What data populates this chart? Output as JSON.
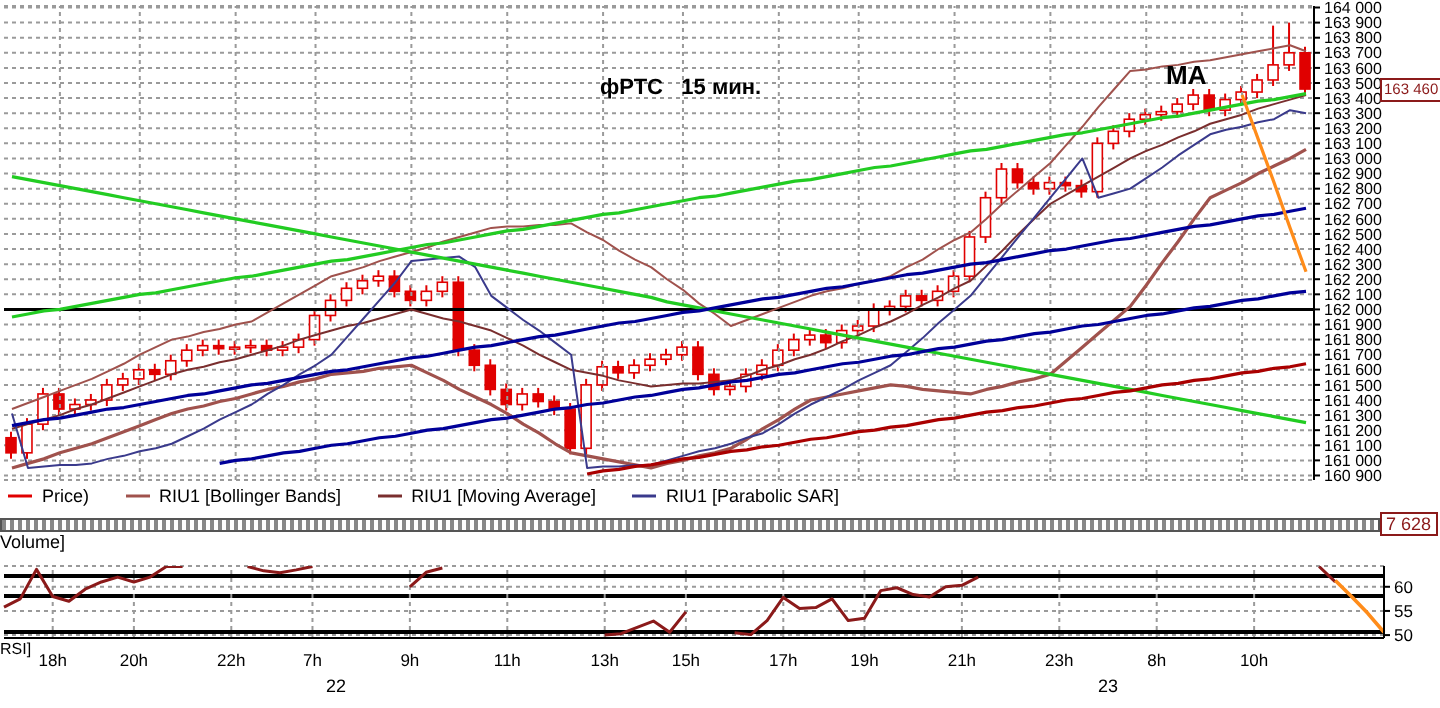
{
  "chart_data": [
    {
      "type": "candlestick",
      "title": "фРТС   15 мин.",
      "categories": [
        null,
        null,
        null,
        null,
        null,
        null,
        null,
        null,
        null,
        null,
        null,
        null,
        null,
        null,
        null,
        null,
        null,
        null,
        null,
        null,
        null,
        null,
        null,
        null,
        null,
        null,
        null,
        null,
        null,
        null,
        null,
        null,
        null,
        null,
        null,
        null,
        null,
        null,
        null,
        null,
        null,
        null,
        null,
        null,
        null,
        null,
        null,
        null,
        null,
        null,
        null,
        null,
        null,
        null,
        null,
        null,
        null,
        null,
        null,
        null,
        null,
        null,
        null,
        null,
        null,
        null,
        null,
        null,
        null,
        null,
        null,
        null,
        null,
        null,
        null,
        null,
        null,
        null,
        null,
        null,
        null,
        null
      ],
      "series": [
        {
          "name": "Price)",
          "type": "candlestick",
          "color": "#e00000",
          "ohlc": [
            [
              161150,
              161190,
              161010,
              161050
            ],
            [
              161050,
              161280,
              161010,
              161240
            ],
            [
              161240,
              161480,
              161200,
              161440
            ],
            [
              161440,
              161480,
              161300,
              161340
            ],
            [
              161340,
              161410,
              161300,
              161370
            ],
            [
              161370,
              161440,
              161330,
              161400
            ],
            [
              161400,
              161540,
              161360,
              161500
            ],
            [
              161500,
              161580,
              161460,
              161540
            ],
            [
              161540,
              161640,
              161500,
              161600
            ],
            [
              161600,
              161640,
              161530,
              161570
            ],
            [
              161570,
              161700,
              161530,
              161660
            ],
            [
              161660,
              161770,
              161620,
              161730
            ],
            [
              161730,
              161800,
              161690,
              161760
            ],
            [
              161760,
              161800,
              161700,
              161740
            ],
            [
              161740,
              161790,
              161700,
              161750
            ],
            [
              161750,
              161800,
              161710,
              161760
            ],
            [
              161760,
              161800,
              161690,
              161730
            ],
            [
              161730,
              161790,
              161690,
              161750
            ],
            [
              161750,
              161840,
              161710,
              161800
            ],
            [
              161800,
              162000,
              161760,
              161960
            ],
            [
              161960,
              162100,
              161920,
              162060
            ],
            [
              162060,
              162180,
              162020,
              162140
            ],
            [
              162140,
              162230,
              162100,
              162190
            ],
            [
              162190,
              162260,
              162150,
              162220
            ],
            [
              162220,
              162260,
              162080,
              162120
            ],
            [
              162120,
              162160,
              162020,
              162060
            ],
            [
              162060,
              162160,
              162020,
              162120
            ],
            [
              162120,
              162220,
              162080,
              162180
            ],
            [
              162180,
              162220,
              161690,
              161730
            ],
            [
              161730,
              161770,
              161590,
              161630
            ],
            [
              161630,
              161670,
              161430,
              161470
            ],
            [
              161470,
              161510,
              161330,
              161370
            ],
            [
              161370,
              161480,
              161330,
              161440
            ],
            [
              161440,
              161480,
              161350,
              161390
            ],
            [
              161390,
              161430,
              161300,
              161340
            ],
            [
              161340,
              161380,
              161040,
              161080
            ],
            [
              161080,
              161540,
              161040,
              161500
            ],
            [
              161500,
              161660,
              161460,
              161620
            ],
            [
              161620,
              161660,
              161540,
              161580
            ],
            [
              161580,
              161670,
              161540,
              161630
            ],
            [
              161630,
              161710,
              161590,
              161670
            ],
            [
              161670,
              161740,
              161630,
              161700
            ],
            [
              161700,
              161790,
              161660,
              161750
            ],
            [
              161750,
              161790,
              161530,
              161570
            ],
            [
              161570,
              161610,
              161430,
              161470
            ],
            [
              161470,
              161530,
              161430,
              161490
            ],
            [
              161490,
              161610,
              161450,
              161570
            ],
            [
              161570,
              161670,
              161530,
              161630
            ],
            [
              161630,
              161770,
              161590,
              161730
            ],
            [
              161730,
              161840,
              161690,
              161800
            ],
            [
              161800,
              161870,
              161760,
              161830
            ],
            [
              161830,
              161870,
              161740,
              161780
            ],
            [
              161780,
              161900,
              161740,
              161860
            ],
            [
              161860,
              161930,
              161820,
              161890
            ],
            [
              161890,
              162040,
              161850,
              162000
            ],
            [
              162000,
              162060,
              161960,
              162020
            ],
            [
              162020,
              162130,
              161980,
              162090
            ],
            [
              162090,
              162130,
              162020,
              162060
            ],
            [
              162060,
              162160,
              162020,
              162120
            ],
            [
              162120,
              162260,
              162080,
              162220
            ],
            [
              162220,
              162520,
              162180,
              162480
            ],
            [
              162480,
              162780,
              162440,
              162740
            ],
            [
              162740,
              162970,
              162700,
              162930
            ],
            [
              162930,
              162970,
              162800,
              162840
            ],
            [
              162840,
              162880,
              162760,
              162800
            ],
            [
              162800,
              162880,
              162760,
              162840
            ],
            [
              162840,
              162880,
              162780,
              162820
            ],
            [
              162820,
              162860,
              162740,
              162780
            ],
            [
              162780,
              163140,
              162740,
              163100
            ],
            [
              163100,
              163220,
              163060,
              163180
            ],
            [
              163180,
              163300,
              163140,
              163260
            ],
            [
              163260,
              163330,
              163220,
              163290
            ],
            [
              163290,
              163350,
              163250,
              163310
            ],
            [
              163310,
              163400,
              163270,
              163360
            ],
            [
              163360,
              163460,
              163320,
              163420
            ],
            [
              163420,
              163460,
              163280,
              163320
            ],
            [
              163320,
              163430,
              163280,
              163390
            ],
            [
              163390,
              163480,
              163350,
              163440
            ],
            [
              163440,
              163560,
              163400,
              163520
            ],
            [
              163520,
              163880,
              163480,
              163620
            ],
            [
              163620,
              163900,
              163580,
              163700
            ],
            [
              163700,
              163740,
              163420,
              163460
            ]
          ]
        },
        {
          "name": "RIU1 [Bollinger Bands]",
          "type": "line",
          "color": "#a0524d",
          "values": [
            161340,
            161380,
            161420,
            161460,
            161500,
            161540,
            161590,
            161640,
            161700,
            161750,
            161800,
            161820,
            161850,
            161870,
            161900,
            161920,
            161980,
            162040,
            162100,
            162160,
            162220,
            162250,
            162280,
            162320,
            162350,
            162380,
            162410,
            162450,
            162480,
            162510,
            162540,
            162550,
            162550,
            162560,
            162560,
            162570,
            162510,
            162460,
            162390,
            162330,
            162280,
            162200,
            162130,
            162040,
            161970,
            161890,
            161930,
            161970,
            162010,
            162050,
            162090,
            162120,
            162140,
            162170,
            162190,
            162220,
            162280,
            162330,
            162400,
            162460,
            162510,
            162600,
            162700,
            162790,
            162880,
            162970,
            163090,
            163210,
            163340,
            163460,
            163580,
            163590,
            163610,
            163620,
            163640,
            163650,
            163670,
            163690,
            163710,
            163730,
            163750,
            163710
          ]
        },
        {
          "type": "line",
          "color": "#a0524d",
          "values": [
            160950,
            160980,
            161010,
            161050,
            161080,
            161110,
            161150,
            161190,
            161230,
            161270,
            161310,
            161340,
            161360,
            161390,
            161410,
            161440,
            161470,
            161490,
            161520,
            161540,
            161570,
            161580,
            161590,
            161610,
            161620,
            161630,
            161580,
            161530,
            161470,
            161420,
            161370,
            161310,
            161240,
            161180,
            161110,
            161050,
            161030,
            161010,
            160990,
            160970,
            160950,
            160980,
            161000,
            161030,
            161050,
            161080,
            161140,
            161210,
            161270,
            161340,
            161400,
            161420,
            161440,
            161460,
            161480,
            161500,
            161490,
            161470,
            161460,
            161450,
            161440,
            161470,
            161490,
            161520,
            161540,
            161570,
            161660,
            161750,
            161840,
            161930,
            162020,
            162160,
            162310,
            162450,
            162600,
            162740,
            162790,
            162840,
            162900,
            162950,
            163000,
            163060
          ]
        },
        {
          "name": "RIU1 [Moving Average]",
          "type": "line",
          "color": "#7a2e2e",
          "values": [
            161210,
            161240,
            161270,
            161300,
            161340,
            161370,
            161410,
            161450,
            161490,
            161530,
            161570,
            161600,
            161620,
            161650,
            161670,
            161700,
            161730,
            161760,
            161800,
            161830,
            161860,
            161890,
            161910,
            161940,
            161970,
            162000,
            161970,
            161940,
            161920,
            161890,
            161860,
            161810,
            161760,
            161700,
            161650,
            161600,
            161580,
            161560,
            161530,
            161510,
            161490,
            161500,
            161510,
            161510,
            161520,
            161530,
            161560,
            161600,
            161630,
            161670,
            161700,
            161740,
            161790,
            161830,
            161880,
            161920,
            161970,
            162030,
            162080,
            162140,
            162190,
            162290,
            162390,
            162500,
            162600,
            162700,
            162760,
            162820,
            162880,
            162940,
            163000,
            163050,
            163090,
            163140,
            163180,
            163230,
            163260,
            163290,
            163330,
            163360,
            163390,
            163420
          ]
        },
        {
          "name": "RIU1 [Parabolic SAR]",
          "type": "line",
          "color": "#3a3a8c",
          "values": [
            161310,
            160950,
            160960,
            160970,
            160970,
            160980,
            161010,
            161030,
            161060,
            161080,
            161110,
            161160,
            161210,
            161270,
            161320,
            161370,
            161440,
            161500,
            161570,
            161630,
            161700,
            161820,
            161940,
            162060,
            162180,
            162320,
            162330,
            162340,
            162350,
            162280,
            162090,
            162010,
            161930,
            161860,
            161780,
            161700,
            160950,
            160960,
            160960,
            160970,
            160970,
            161000,
            161030,
            161060,
            161080,
            161110,
            161150,
            161180,
            161240,
            161310,
            161370,
            161420,
            161470,
            161530,
            161580,
            161630,
            161720,
            161810,
            161910,
            162000,
            162090,
            162220,
            162350,
            162480,
            162610,
            162740,
            162870,
            163000,
            162740,
            162770,
            162800,
            162870,
            162940,
            163020,
            163090,
            163160,
            163190,
            163210,
            163240,
            163260,
            163320,
            163300
          ]
        },
        {
          "type": "line",
          "color": "#22cc22",
          "values": [
            161950,
            161970,
            161990,
            162000,
            162020,
            162040,
            162060,
            162080,
            162100,
            162110,
            162130,
            162150,
            162170,
            162190,
            162210,
            162220,
            162240,
            162260,
            162280,
            162300,
            162320,
            162330,
            162350,
            162370,
            162390,
            162410,
            162430,
            162440,
            162460,
            162480,
            162500,
            162520,
            162530,
            162550,
            162570,
            162590,
            162610,
            162630,
            162640,
            162660,
            162680,
            162700,
            162720,
            162740,
            162750,
            162770,
            162790,
            162810,
            162830,
            162850,
            162860,
            162880,
            162900,
            162920,
            162940,
            162950,
            162970,
            162990,
            163010,
            163030,
            163050,
            163060,
            163080,
            163100,
            163120,
            163140,
            163160,
            163170,
            163190,
            163210,
            163230,
            163250,
            163270,
            163280,
            163300,
            163320,
            163340,
            163360,
            163380,
            163390,
            163410,
            163430
          ]
        },
        {
          "type": "line",
          "color": "#22cc22",
          "values": [
            162880,
            162860,
            162840,
            162820,
            162800,
            162780,
            162760,
            162740,
            162720,
            162700,
            162680,
            162660,
            162640,
            162620,
            162600,
            162580,
            162560,
            162540,
            162520,
            162500,
            162480,
            162460,
            162440,
            162420,
            162400,
            162380,
            162360,
            162340,
            162320,
            162300,
            162280,
            162260,
            162240,
            162220,
            162200,
            162180,
            162160,
            162140,
            162120,
            162100,
            162080,
            162050,
            162030,
            162010,
            161990,
            161970,
            161950,
            161930,
            161910,
            161890,
            161870,
            161850,
            161830,
            161810,
            161790,
            161770,
            161750,
            161730,
            161710,
            161690,
            161670,
            161650,
            161630,
            161610,
            161590,
            161570,
            161550,
            161530,
            161510,
            161490,
            161470,
            161450,
            161430,
            161410,
            161390,
            161370,
            161350,
            161330,
            161310,
            161290,
            161270,
            161250
          ]
        },
        {
          "type": "line",
          "color": "#000099",
          "values": [
            161230,
            161250,
            161270,
            161280,
            161300,
            161320,
            161340,
            161350,
            161370,
            161390,
            161410,
            161430,
            161440,
            161460,
            161480,
            161500,
            161510,
            161530,
            161550,
            161570,
            161590,
            161600,
            161620,
            161640,
            161660,
            161680,
            161690,
            161710,
            161730,
            161750,
            161760,
            161780,
            161800,
            161820,
            161830,
            161850,
            161870,
            161890,
            161910,
            161920,
            161940,
            161960,
            161980,
            161990,
            162010,
            162030,
            162050,
            162070,
            162080,
            162100,
            162120,
            162140,
            162150,
            162170,
            162190,
            162210,
            162230,
            162240,
            162260,
            162280,
            162300,
            162310,
            162330,
            162350,
            162370,
            162390,
            162400,
            162420,
            162440,
            162460,
            162470,
            162490,
            162510,
            162530,
            162550,
            162560,
            162580,
            162600,
            162620,
            162630,
            162650,
            162670
          ]
        },
        {
          "type": "line",
          "color": "#000099",
          "values": [
            null,
            null,
            null,
            null,
            null,
            null,
            null,
            null,
            null,
            null,
            null,
            null,
            null,
            160980,
            161000,
            161010,
            161030,
            161050,
            161060,
            161080,
            161100,
            161110,
            161130,
            161150,
            161160,
            161180,
            161200,
            161210,
            161230,
            161250,
            161270,
            161280,
            161300,
            161320,
            161340,
            161350,
            161370,
            161380,
            161400,
            161420,
            161430,
            161450,
            161470,
            161480,
            161500,
            161520,
            161530,
            161550,
            161570,
            161580,
            161600,
            161620,
            161640,
            161650,
            161670,
            161690,
            161700,
            161720,
            161740,
            161750,
            161770,
            161790,
            161800,
            161820,
            161840,
            161850,
            161870,
            161890,
            161900,
            161920,
            161940,
            161960,
            161970,
            161990,
            162010,
            162020,
            162040,
            162060,
            162070,
            162090,
            162110,
            162120
          ]
        },
        {
          "type": "line",
          "color": "#aa0000",
          "values": [
            null,
            null,
            null,
            null,
            null,
            null,
            null,
            null,
            null,
            null,
            null,
            null,
            null,
            null,
            null,
            null,
            null,
            null,
            null,
            null,
            null,
            null,
            null,
            null,
            null,
            null,
            null,
            null,
            null,
            null,
            null,
            null,
            null,
            null,
            null,
            null,
            160910,
            160930,
            160940,
            160960,
            160970,
            160990,
            161010,
            161020,
            161040,
            161060,
            161070,
            161090,
            161100,
            161120,
            161140,
            161150,
            161170,
            161190,
            161200,
            161220,
            161230,
            161250,
            161270,
            161280,
            161300,
            161320,
            161330,
            161350,
            161360,
            161380,
            161400,
            161410,
            161430,
            161450,
            161460,
            161480,
            161500,
            161510,
            161530,
            161540,
            161560,
            161580,
            161590,
            161610,
            161620,
            161640
          ]
        },
        {
          "type": "line",
          "color": "#ff8c1a",
          "values": [
            null,
            null,
            null,
            null,
            null,
            null,
            null,
            null,
            null,
            null,
            null,
            null,
            null,
            null,
            null,
            null,
            null,
            null,
            null,
            null,
            null,
            null,
            null,
            null,
            null,
            null,
            null,
            null,
            null,
            null,
            null,
            null,
            null,
            null,
            null,
            null,
            null,
            null,
            null,
            null,
            null,
            null,
            null,
            null,
            null,
            null,
            null,
            null,
            null,
            null,
            null,
            null,
            null,
            null,
            null,
            null,
            null,
            null,
            null,
            null,
            null,
            null,
            null,
            null,
            null,
            null,
            null,
            null,
            null,
            null,
            null,
            null,
            null,
            null,
            null,
            null,
            null,
            163420,
            163130,
            162840,
            162540,
            162250
          ]
        }
      ],
      "ylim": [
        160870,
        164010
      ],
      "yticks": [
        {
          "value": 160900,
          "label": "160 900"
        },
        {
          "value": 161000,
          "label": "161 000"
        },
        {
          "value": 161100,
          "label": "161 100"
        },
        {
          "value": 161200,
          "label": "161 200"
        },
        {
          "value": 161300,
          "label": "161 300"
        },
        {
          "value": 161400,
          "label": "161 400"
        },
        {
          "value": 161500,
          "label": "161 500"
        },
        {
          "value": 161600,
          "label": "161 600"
        },
        {
          "value": 161700,
          "label": "161 700"
        },
        {
          "value": 161800,
          "label": "161 800"
        },
        {
          "value": 161900,
          "label": "161 900"
        },
        {
          "value": 162000,
          "label": "162 000"
        },
        {
          "value": 162100,
          "label": "162 100"
        },
        {
          "value": 162200,
          "label": "162 200"
        },
        {
          "value": 162300,
          "label": "162 300"
        },
        {
          "value": 162400,
          "label": "162 400"
        },
        {
          "value": 162500,
          "label": "162 500"
        },
        {
          "value": 162600,
          "label": "162 600"
        },
        {
          "value": 162700,
          "label": "162 700"
        },
        {
          "value": 162800,
          "label": "162 800"
        },
        {
          "value": 162900,
          "label": "162 900"
        },
        {
          "value": 163000,
          "label": "163 000"
        },
        {
          "value": 163100,
          "label": "163 100"
        },
        {
          "value": 163200,
          "label": "163 200"
        },
        {
          "value": 163300,
          "label": "163 300"
        },
        {
          "value": 163400,
          "label": "163 400"
        },
        {
          "value": 163500,
          "label": "163 500"
        },
        {
          "value": 163600,
          "label": "163 600"
        },
        {
          "value": 163700,
          "label": "163 700"
        },
        {
          "value": 163800,
          "label": "163 800"
        },
        {
          "value": 163900,
          "label": "163 900"
        },
        {
          "value": 164000,
          "label": "164 000"
        }
      ],
      "tick_labels": "y",
      "grid": true,
      "legend": "bottom left",
      "ref_lines": [
        {
          "axis": "y",
          "value": 162000,
          "color": "#000000"
        }
      ],
      "annotations": [
        "MA",
        "163 460"
      ]
    },
    {
      "type": "line",
      "title": "RSI]",
      "categories": [
        null,
        null,
        null,
        "18h",
        null,
        null,
        null,
        null,
        "20h",
        null,
        null,
        null,
        null,
        null,
        "22h",
        null,
        null,
        null,
        null,
        "7h",
        null,
        null,
        null,
        null,
        null,
        "9h",
        null,
        null,
        null,
        null,
        null,
        "11h",
        null,
        null,
        null,
        null,
        null,
        "13h",
        null,
        null,
        null,
        null,
        "15h",
        null,
        null,
        null,
        null,
        null,
        "17h",
        null,
        null,
        null,
        null,
        "19h",
        null,
        null,
        null,
        null,
        null,
        "21h",
        null,
        null,
        null,
        null,
        null,
        "23h",
        null,
        null,
        null,
        null,
        null,
        "8h",
        null,
        null,
        null,
        null,
        null,
        "10h",
        null,
        null,
        null,
        null,
        null,
        null,
        null,
        null
      ],
      "series": [
        {
          "color": "#8b1a1a",
          "values": [
            55.8,
            57.5,
            63.6,
            58.0,
            57.0,
            59.5,
            61.0,
            62.0,
            61.0,
            62.0,
            64.2,
            64.2,
            null,
            null,
            null,
            64.2,
            63.3,
            62.9,
            63.5,
            64.2,
            null,
            null,
            null,
            null,
            null,
            60.0,
            63.0,
            63.9,
            null,
            null,
            null,
            null,
            null,
            null,
            null,
            null,
            null,
            50.0,
            50.3,
            51.6,
            52.9,
            50.6,
            54.8,
            null,
            null,
            50.5,
            50.1,
            53.0,
            57.8,
            55.5,
            55.7,
            57.5,
            53.0,
            53.5,
            59.2,
            59.8,
            58.4,
            57.9,
            60.0,
            60.3,
            62.0,
            null,
            null,
            null,
            null,
            null,
            null,
            null,
            null,
            null,
            null,
            null,
            null,
            null,
            null,
            null,
            null,
            null,
            null,
            null,
            null,
            64.2,
            61.0,
            null,
            null,
            null
          ]
        },
        {
          "color": "#ff8c1a",
          "values": [
            null,
            null,
            null,
            null,
            null,
            null,
            null,
            null,
            null,
            null,
            null,
            null,
            null,
            null,
            null,
            null,
            null,
            null,
            null,
            null,
            null,
            null,
            null,
            null,
            null,
            null,
            null,
            null,
            null,
            null,
            null,
            null,
            null,
            null,
            null,
            null,
            null,
            null,
            null,
            null,
            null,
            null,
            null,
            null,
            null,
            null,
            null,
            null,
            null,
            null,
            null,
            null,
            null,
            null,
            null,
            null,
            null,
            null,
            null,
            null,
            null,
            null,
            null,
            null,
            null,
            null,
            null,
            null,
            null,
            null,
            null,
            null,
            null,
            null,
            null,
            null,
            null,
            null,
            null,
            null,
            null,
            null,
            61.3,
            58.0,
            54.5,
            50.6
          ]
        }
      ],
      "ylim": [
        49.4,
        64.3
      ],
      "yticks": [
        50,
        55,
        60
      ],
      "grid": true,
      "ref_lines": [
        {
          "axis": "y",
          "value": 62.1,
          "color": "#000000"
        },
        {
          "axis": "y",
          "value": 58,
          "color": "#000000"
        },
        {
          "axis": "y",
          "value": 50.8,
          "color": "#000000"
        }
      ],
      "annotations": [
        "Volume]",
        "7 628",
        "22",
        "23"
      ]
    }
  ]
}
